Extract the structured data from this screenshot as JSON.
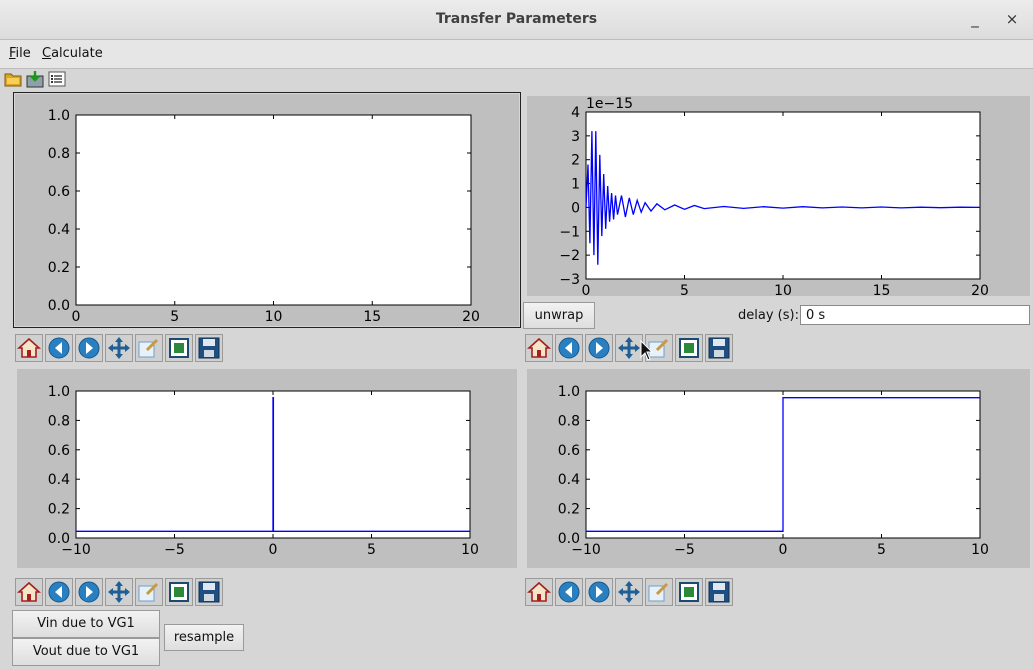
{
  "window": {
    "title": "Transfer Parameters",
    "minimize_glyph": "_",
    "close_glyph": "×"
  },
  "menu": {
    "items": [
      {
        "label_ul": "F",
        "label_rest": "ile"
      },
      {
        "label_ul": "C",
        "label_rest": "alculate"
      }
    ]
  },
  "top_toolbar": {
    "icons": [
      "open-folder-icon",
      "save-download-icon",
      "properties-list-icon"
    ]
  },
  "controls": {
    "unwrap_label": "unwrap",
    "delay_label": "delay (s):",
    "delay_value": "0 s",
    "vin_label": "Vin due to VG1",
    "vout_label": "Vout due to VG1",
    "resample_label": "resample"
  },
  "nav_toolbar": {
    "icons": [
      "home-icon",
      "back-icon",
      "forward-icon",
      "pan-icon",
      "zoom-icon",
      "subplots-icon",
      "save-icon"
    ]
  },
  "chart_data": [
    {
      "type": "line",
      "title": "",
      "xlim": [
        0,
        20
      ],
      "ylim": [
        0,
        1
      ],
      "xticks": [
        "0",
        "5",
        "10",
        "15",
        "20"
      ],
      "yticks": [
        "0.0",
        "0.2",
        "0.4",
        "0.6",
        "0.8",
        "1.0"
      ],
      "series": [],
      "color": "#0000ff"
    },
    {
      "type": "line",
      "title": "",
      "offset_label": "1e−15",
      "xlim": [
        0,
        20
      ],
      "ylim": [
        -3,
        4
      ],
      "xticks": [
        "0",
        "5",
        "10",
        "15",
        "20"
      ],
      "yticks": [
        "−3",
        "−2",
        "−1",
        "0",
        "1",
        "2",
        "3",
        "4"
      ],
      "series": [
        {
          "x": [
            0,
            0.1,
            0.2,
            0.3,
            0.4,
            0.5,
            0.6,
            0.7,
            0.8,
            0.9,
            1.0,
            1.1,
            1.2,
            1.3,
            1.4,
            1.5,
            1.6,
            1.8,
            2.0,
            2.2,
            2.4,
            2.6,
            2.8,
            3.0,
            3.3,
            3.6,
            4.0,
            4.5,
            5.0,
            5.5,
            6.0,
            7.0,
            8.0,
            9.0,
            10.0,
            11.0,
            12.0,
            13.0,
            14.0,
            15.0,
            16.0,
            17.0,
            18.0,
            19.0,
            20.0
          ],
          "y": [
            0,
            1.8,
            -1.5,
            3.2,
            -2.0,
            3.2,
            -2.4,
            2.2,
            -1.2,
            1.4,
            -0.9,
            0.9,
            -0.6,
            0.6,
            -0.5,
            0.5,
            -0.3,
            0.5,
            -0.4,
            0.4,
            -0.3,
            0.3,
            -0.2,
            0.2,
            -0.15,
            0.15,
            -0.1,
            0.1,
            -0.08,
            0.08,
            -0.05,
            0.04,
            -0.04,
            0.03,
            -0.03,
            0.03,
            -0.02,
            0.02,
            -0.02,
            0.02,
            -0.02,
            0.01,
            -0.01,
            0.01,
            0.0
          ]
        }
      ],
      "color": "#0000ff"
    },
    {
      "type": "line",
      "title": "",
      "xlim": [
        -10,
        10
      ],
      "ylim": [
        -0.05,
        1.05
      ],
      "xticks": [
        "−10",
        "−5",
        "0",
        "5",
        "10"
      ],
      "yticks": [
        "0.0",
        "0.2",
        "0.4",
        "0.6",
        "0.8",
        "1.0"
      ],
      "series": [
        {
          "x": [
            -10,
            0,
            0,
            0.02,
            0.02,
            10
          ],
          "y": [
            0,
            0,
            1,
            1,
            0,
            0
          ]
        }
      ],
      "color": "#0000ff"
    },
    {
      "type": "line",
      "title": "",
      "xlim": [
        -10,
        10
      ],
      "ylim": [
        -0.05,
        1.05
      ],
      "xticks": [
        "−10",
        "−5",
        "0",
        "5",
        "10"
      ],
      "yticks": [
        "0.0",
        "0.2",
        "0.4",
        "0.6",
        "0.8",
        "1.0"
      ],
      "series": [
        {
          "x": [
            -10,
            0,
            0,
            10
          ],
          "y": [
            0,
            0,
            1,
            1
          ]
        }
      ],
      "color": "#0000ff"
    }
  ]
}
